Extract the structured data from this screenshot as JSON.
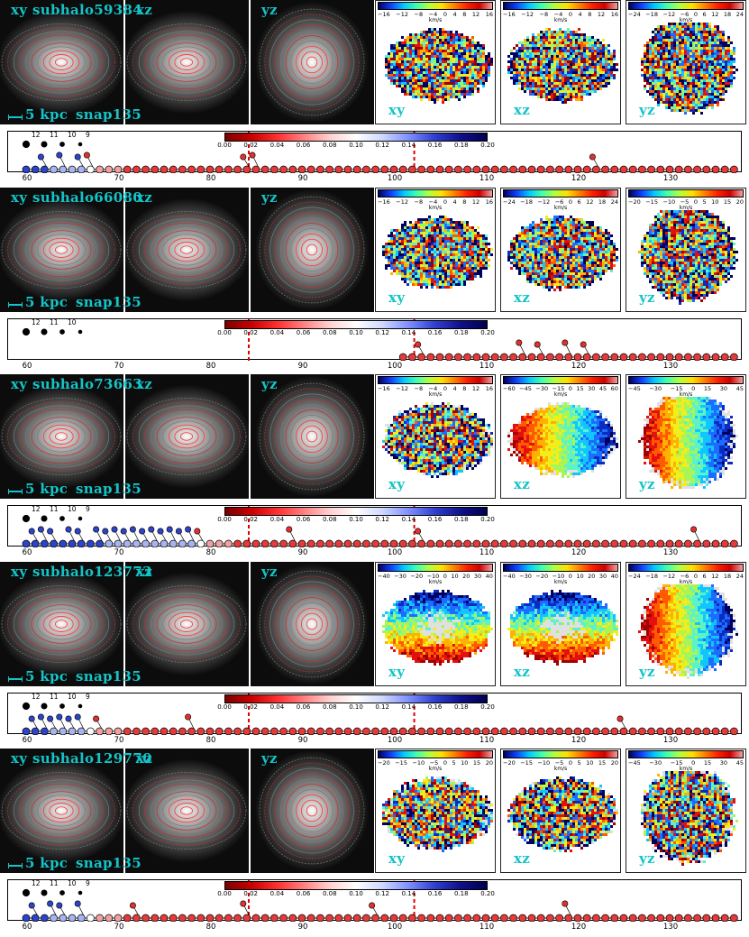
{
  "groups": [
    {
      "name": "subhalo59384",
      "snap": "snap135",
      "scale_label": "5 kpc",
      "projections": [
        "xy",
        "xz",
        "yz"
      ],
      "velocity_maps": [
        {
          "proj": "xy",
          "ticks": [
            "−16",
            "−12",
            "−8",
            "−4",
            "0",
            "4",
            "8",
            "12",
            "16"
          ],
          "pattern": "noisy"
        },
        {
          "proj": "xz",
          "ticks": [
            "−16",
            "−12",
            "−8",
            "−4",
            "0",
            "4",
            "8",
            "12",
            "16"
          ],
          "pattern": "noisy"
        },
        {
          "proj": "yz",
          "ticks": [
            "−24",
            "−18",
            "−12",
            "−6",
            "0",
            "6",
            "12",
            "18",
            "24"
          ],
          "pattern": "noisy"
        }
      ]
    },
    {
      "name": "subhalo66080",
      "snap": "snap135",
      "scale_label": "5 kpc",
      "projections": [
        "xy",
        "xz",
        "yz"
      ],
      "velocity_maps": [
        {
          "proj": "xy",
          "ticks": [
            "−16",
            "−12",
            "−8",
            "−4",
            "0",
            "4",
            "8",
            "12",
            "16"
          ],
          "pattern": "noisy"
        },
        {
          "proj": "xz",
          "ticks": [
            "−24",
            "−18",
            "−12",
            "−6",
            "0",
            "6",
            "12",
            "18",
            "24"
          ],
          "pattern": "noisy"
        },
        {
          "proj": "yz",
          "ticks": [
            "−20",
            "−15",
            "−10",
            "−5",
            "0",
            "5",
            "10",
            "15",
            "20"
          ],
          "pattern": "noisy"
        }
      ]
    },
    {
      "name": "subhalo73663",
      "snap": "snap135",
      "scale_label": "5 kpc",
      "projections": [
        "xy",
        "xz",
        "yz"
      ],
      "velocity_maps": [
        {
          "proj": "xy",
          "ticks": [
            "−16",
            "−12",
            "−8",
            "−4",
            "0",
            "4",
            "8",
            "12",
            "16"
          ],
          "pattern": "weak"
        },
        {
          "proj": "xz",
          "ticks": [
            "−60",
            "−45",
            "−30",
            "−15",
            "0",
            "15",
            "30",
            "45",
            "60"
          ],
          "pattern": "rotation"
        },
        {
          "proj": "yz",
          "ticks": [
            "−45",
            "−30",
            "−15",
            "0",
            "15",
            "30",
            "45"
          ],
          "pattern": "rotation"
        }
      ]
    },
    {
      "name": "subhalo123773",
      "snap": "snap135",
      "scale_label": "5 kpc",
      "projections": [
        "xy",
        "xz",
        "yz"
      ],
      "velocity_maps": [
        {
          "proj": "xy",
          "ticks": [
            "−40",
            "−30",
            "−20",
            "−10",
            "0",
            "10",
            "20",
            "30",
            "40"
          ],
          "pattern": "ring"
        },
        {
          "proj": "xz",
          "ticks": [
            "−40",
            "−30",
            "−20",
            "−10",
            "0",
            "10",
            "20",
            "30",
            "40"
          ],
          "pattern": "ring"
        },
        {
          "proj": "yz",
          "ticks": [
            "−24",
            "−18",
            "−12",
            "−6",
            "0",
            "6",
            "12",
            "18",
            "24"
          ],
          "pattern": "rotation"
        }
      ]
    },
    {
      "name": "subhalo129770",
      "snap": "snap135",
      "scale_label": "5 kpc",
      "projections": [
        "xy",
        "xz",
        "yz"
      ],
      "velocity_maps": [
        {
          "proj": "xy",
          "ticks": [
            "−20",
            "−15",
            "−10",
            "−5",
            "0",
            "5",
            "10",
            "15",
            "20"
          ],
          "pattern": "weak"
        },
        {
          "proj": "xz",
          "ticks": [
            "−20",
            "−15",
            "−10",
            "−5",
            "0",
            "5",
            "10",
            "15",
            "20"
          ],
          "pattern": "weak"
        },
        {
          "proj": "yz",
          "ticks": [
            "−45",
            "−30",
            "−15",
            "0",
            "15",
            "30",
            "45"
          ],
          "pattern": "weak"
        }
      ]
    }
  ],
  "velocity_unit": "km/s",
  "timeline": {
    "x_ticks": [
      "60",
      "70",
      "80",
      "90",
      "100",
      "110",
      "120",
      "130"
    ],
    "fraction_ticks": [
      "0.00",
      "0.02",
      "0.04",
      "0.06",
      "0.08",
      "0.10",
      "0.12",
      "0.14",
      "0.16",
      "0.18",
      "0.20"
    ],
    "generation_labels": [
      "12",
      "11",
      "10",
      "9"
    ],
    "rows": [
      {
        "start": 60,
        "blue_until": 66,
        "merger_snaps": [
          62,
          64,
          66,
          67,
          84,
          85,
          122
        ]
      },
      {
        "start": 101,
        "blue_until": 0,
        "merger_snaps": [
          103,
          114,
          116,
          119,
          121
        ]
      },
      {
        "start": 60,
        "blue_until": 78,
        "merger_snaps": [
          61,
          62,
          63,
          65,
          66,
          68,
          69,
          70,
          71,
          72,
          73,
          74,
          75,
          76,
          77,
          78,
          79,
          89,
          103,
          133
        ]
      },
      {
        "start": 60,
        "blue_until": 66,
        "merger_snaps": [
          61,
          62,
          63,
          64,
          65,
          66,
          68,
          78,
          125
        ]
      },
      {
        "start": 60,
        "blue_until": 66,
        "merger_snaps": [
          61,
          63,
          64,
          66,
          72,
          84,
          98,
          119
        ]
      }
    ]
  },
  "colors": {
    "label_cyan": "#14c4c8",
    "marker_red": "#e03030",
    "dashed_red": "#e00000"
  }
}
